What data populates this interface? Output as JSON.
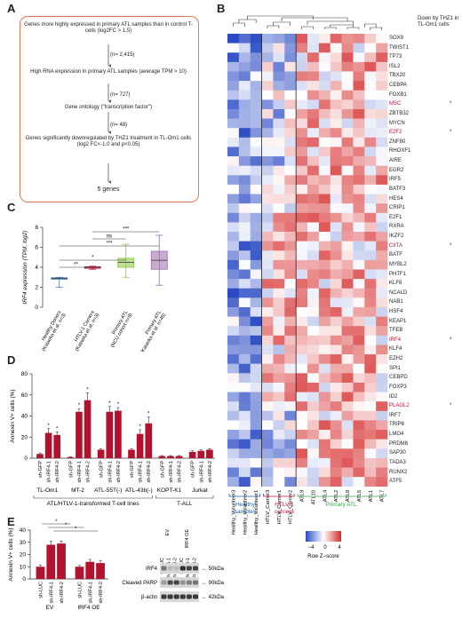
{
  "panels": {
    "a": "A",
    "b": "B",
    "c": "C",
    "d": "D",
    "e": "E"
  },
  "flow": {
    "step1": "Genes more highly expressed in primary ATL samples than in control T-cells (log2FC > 1.5)",
    "n1": "(n= 2,415)",
    "step2": "High RNA expression in primary ATL samples (average TPM > 10)",
    "n2": "(n= 727)",
    "step3": "Gene ontology (\"transcription factor\")",
    "n3": "(n= 48)",
    "step4": "Genes significantly downregulated by THZ1 treatment in TL-Om1 cells (log2 FC<-1.0 and p<0.05)",
    "result": "5 genes"
  },
  "heatmap": {
    "note": "Down by THZ1 in TL-Om1 cells",
    "genes": [
      "SOX9",
      "TWIST1",
      "TP73",
      "ISL2",
      "TBX20",
      "CEBPA",
      "FOXB1",
      "MSC",
      "ZBTB32",
      "MYCN",
      "E2F2",
      "ZNF80",
      "RHOXF1",
      "AIRE",
      "EGR2",
      "IRF5",
      "BATF3",
      "HES4",
      "CRIP1",
      "E2F1",
      "RXRA",
      "IKZF2",
      "CIITA",
      "BATF",
      "MYBL2",
      "PHTF1",
      "KLF8",
      "NCALD",
      "NAB1",
      "HSF4",
      "KEAP1",
      "TFEB",
      "IRF4",
      "KLF4",
      "EZH2",
      "SPI1",
      "CEBPD",
      "FOXP3",
      "ID2",
      "PLAGL2",
      "IRF7",
      "TRIP6",
      "LMO4",
      "PRDM8",
      "SAP30",
      "TADA3",
      "RUNX2",
      "ATF5"
    ],
    "highlighted": [
      "MSC",
      "E2F2",
      "CIITA",
      "IRF4",
      "PLAGL2"
    ],
    "star": "*",
    "samples": [
      "Healthy_Volunteer3",
      "Healthy_Volunteer2",
      "Healthy_Volunteer1",
      "HTLV_Carrier3",
      "HTLV_Carrier1",
      "HTLV_Carrier2",
      "ATL9",
      "ATL10",
      "ATL4",
      "ATL2",
      "ATL8",
      "ATL5",
      "ATL1",
      "ATL7"
    ],
    "groups": [
      {
        "name": "Healthy samples",
        "color": "#1f5fa8"
      },
      {
        "name": "HTLV-1 carriers",
        "color": "#c0143c"
      },
      {
        "name": "Primary ATL",
        "color": "#3aa84a"
      }
    ],
    "legend_ticks": [
      "−4",
      "0",
      "4"
    ],
    "legend_label": "Row Z−score"
  },
  "chart_data": [
    {
      "type": "box",
      "ylabel": "IRF4 expression (TPM, log2)",
      "ylim": [
        0,
        8
      ],
      "yticks": [
        "0",
        "2",
        "4",
        "6",
        "8"
      ],
      "categories": [
        "Healthy Donors (Kataoka et al. n=3)",
        "HTLV-1 Carriers (Kataoka et al. n=3)",
        "Primary ATL (NCU cohort n=9)",
        "Primary ATL (Kataoka et al. n=45)"
      ],
      "boxes": [
        {
          "min": 2.0,
          "q1": 2.8,
          "median": 2.9,
          "q3": 2.95,
          "max": 3.0,
          "color": "#4a7fb5"
        },
        {
          "min": 3.8,
          "q1": 3.9,
          "median": 4.0,
          "q3": 4.05,
          "max": 4.1,
          "color": "#c0143c"
        },
        {
          "min": 3.0,
          "q1": 4.0,
          "median": 4.5,
          "q3": 4.9,
          "max": 6.3,
          "color": "#8cc63f"
        },
        {
          "min": 2.2,
          "q1": 3.8,
          "median": 4.7,
          "q3": 5.6,
          "max": 7.2,
          "color": "#9b6aa8"
        }
      ],
      "significance": [
        "**",
        "*",
        "***",
        "ns",
        "***"
      ]
    },
    {
      "type": "bar",
      "ylabel": "Annexin V+ cells (%)",
      "ylim": [
        0,
        80
      ],
      "yticks": [
        "0",
        "20",
        "40",
        "60",
        "80"
      ],
      "bar_labels": [
        "sh-GFP",
        "sh-IRF4-1",
        "sh-IRF4-2"
      ],
      "groups": [
        {
          "name": "TL-Om1",
          "values": [
            4,
            24,
            22
          ],
          "err": [
            1,
            4,
            3
          ]
        },
        {
          "name": "MT-2",
          "values": [
            1,
            44,
            55
          ],
          "err": [
            0.5,
            3,
            7
          ]
        },
        {
          "name": "ATL-55T(-)",
          "values": [
            8,
            44,
            45
          ],
          "err": [
            1,
            5,
            3
          ]
        },
        {
          "name": "ATL-43b(-)",
          "values": [
            8,
            23,
            33
          ],
          "err": [
            1,
            4,
            6
          ]
        },
        {
          "name": "KOPT-K1",
          "values": [
            2,
            2,
            2
          ],
          "err": [
            0.5,
            0.5,
            0.5
          ]
        },
        {
          "name": "Jurkat",
          "values": [
            6,
            7,
            8
          ],
          "err": [
            1,
            1,
            1
          ]
        }
      ],
      "stars": "*",
      "brackets": [
        "ATL/HTLV-1-transformed T-cell lines",
        "T-ALL"
      ]
    },
    {
      "type": "bar",
      "ylabel": "Annexin V+ cells (%)",
      "ylim": [
        0,
        40
      ],
      "yticks": [
        "0",
        "10",
        "20",
        "30",
        "40"
      ],
      "bar_labels": [
        "sh-LUC",
        "sh-IRF4-1",
        "sh-IRF4-2"
      ],
      "groups": [
        {
          "name": "EV",
          "values": [
            10,
            28,
            29
          ],
          "err": [
            1.5,
            3,
            2
          ]
        },
        {
          "name": "IRF4 OE",
          "values": [
            10,
            14,
            13
          ],
          "err": [
            1,
            2,
            2
          ]
        }
      ],
      "stars": "*"
    }
  ],
  "blot": {
    "col_headers": [
      "sh-LUC",
      "sh-IRF4-1",
      "sh-IRF4-2",
      "sh-LUC",
      "sh-IRF4-1",
      "sh-IRF4-2"
    ],
    "group_headers": [
      "EV",
      "IRF4 OE"
    ],
    "rows": [
      {
        "name": "IRF4",
        "size": "← 50kDa"
      },
      {
        "name": "Cleaved PARP",
        "size": "← 90kDa"
      },
      {
        "name": "β-actin",
        "size": "← 42kDa"
      }
    ]
  },
  "colors": {
    "bar": "#b3112d",
    "blue": "#2b4bc4",
    "white": "#ffffff",
    "red": "#d62c2c"
  }
}
